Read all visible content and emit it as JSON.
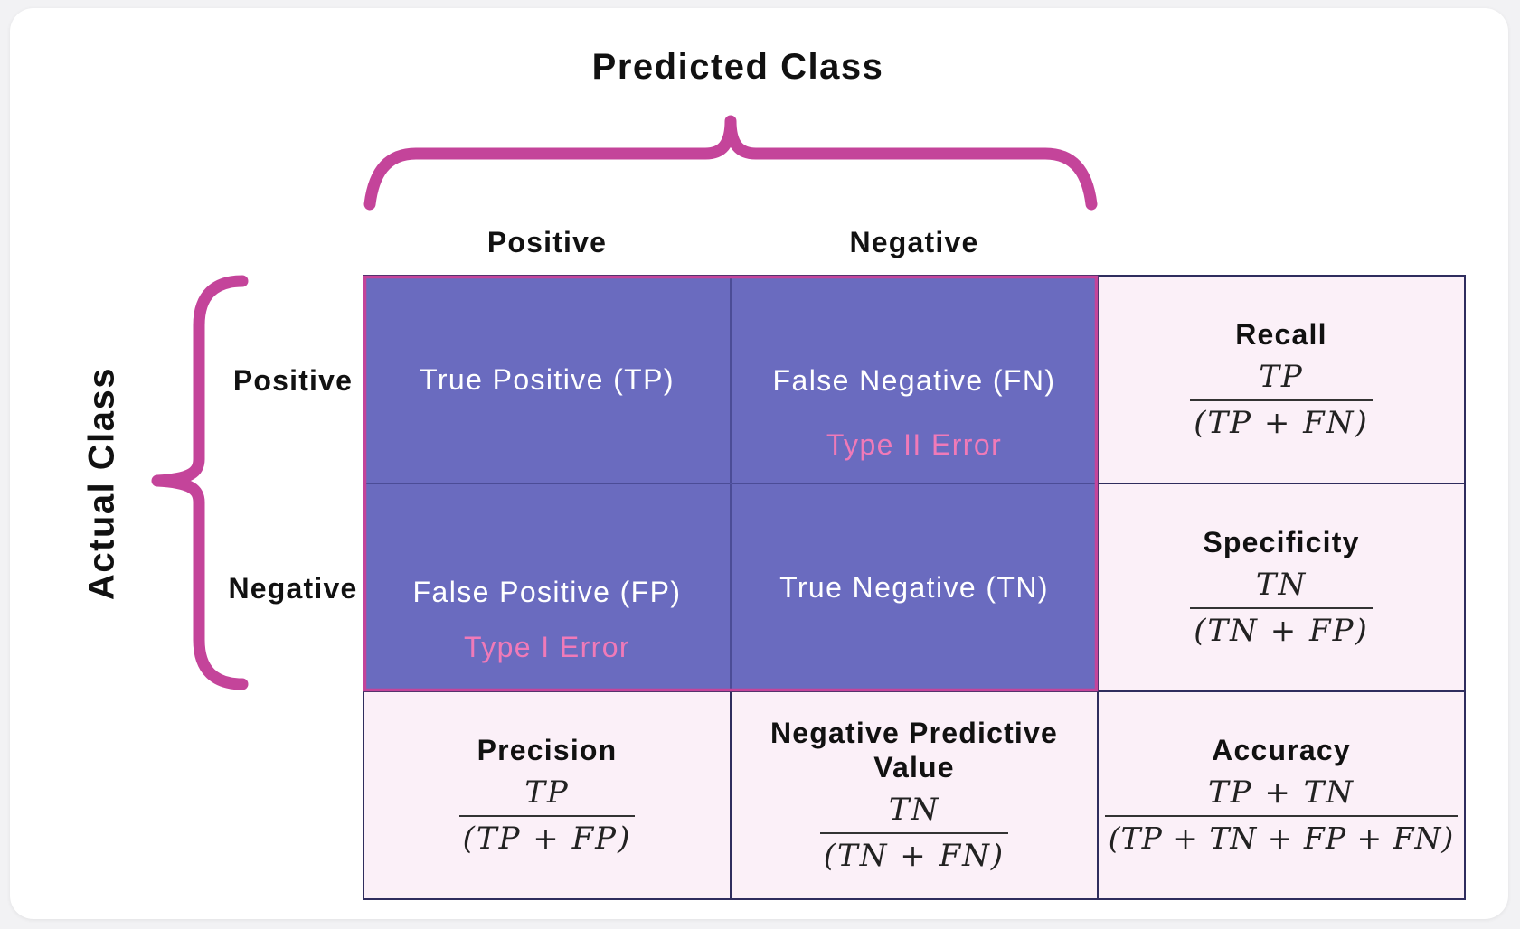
{
  "titles": {
    "predicted": "Predicted Class",
    "actual": "Actual Class"
  },
  "columns": [
    "Positive",
    "Negative"
  ],
  "rows": [
    "Positive",
    "Negative"
  ],
  "matrix": {
    "tp": "True Positive (TP)",
    "fn": "False Negative (FN)",
    "fn_error": "Type II Error",
    "fp": "False Positive (FP)",
    "fp_error": "Type I Error",
    "tn": "True Negative (TN)"
  },
  "metrics": {
    "recall": {
      "name": "Recall",
      "numerator": "TP",
      "denominator": "(TP + FN)"
    },
    "specificity": {
      "name": "Specificity",
      "numerator": "TN",
      "denominator": "(TN + FP)"
    },
    "precision": {
      "name": "Precision",
      "numerator": "TP",
      "denominator": "(TP + FP)"
    },
    "npv": {
      "name": "Negative Predictive Value",
      "numerator": "TN",
      "denominator": "(TN + FN)"
    },
    "accuracy": {
      "name": "Accuracy",
      "numerator": "TP + TN",
      "denominator": "(TP + TN + FP + FN)"
    }
  },
  "colors": {
    "matrix_fill": "#6a6bbf",
    "accent_magenta": "#c4449a",
    "error_text": "#f07ab8",
    "metric_fill": "#fbf0f8",
    "grid_line": "#2f2d5e"
  }
}
